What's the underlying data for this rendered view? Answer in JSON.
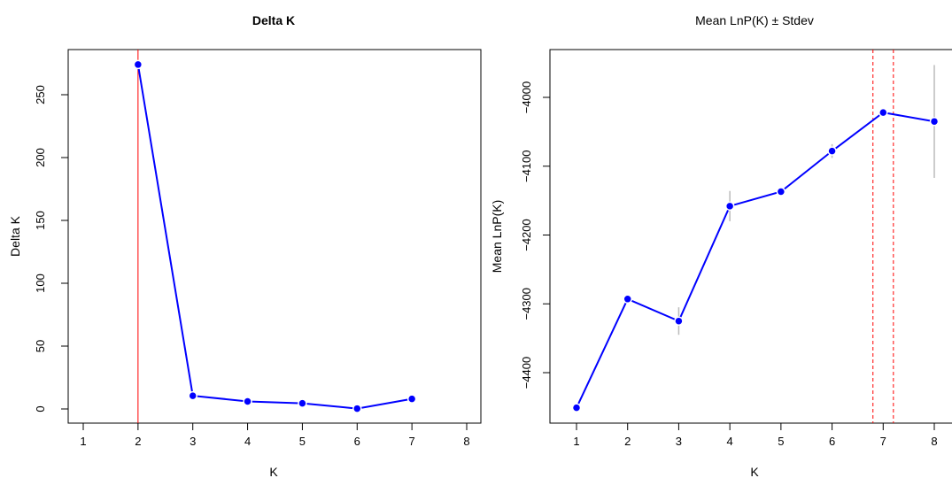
{
  "chart_data": [
    {
      "type": "line",
      "title": "Delta K",
      "xlabel": "K",
      "ylabel": "Delta K",
      "xlim": [
        1,
        8
      ],
      "ylim": [
        0,
        275
      ],
      "xticks": [
        1,
        2,
        3,
        4,
        5,
        6,
        7,
        8
      ],
      "yticks": [
        0,
        50,
        100,
        150,
        200,
        250
      ],
      "x": [
        2,
        3,
        4,
        5,
        6,
        7
      ],
      "y": [
        274,
        10.5,
        6,
        4.5,
        0.3,
        8
      ],
      "vline_x": 2,
      "grid": false,
      "colors": {
        "series": "#0000ff",
        "vline": "#ff0000"
      }
    },
    {
      "type": "line",
      "title": "Mean LnP(K) ± Stdev",
      "xlabel": "K",
      "ylabel": "Mean LnP(K)",
      "xlim": [
        1,
        8
      ],
      "ylim": [
        -4450,
        -4022
      ],
      "xticks": [
        1,
        2,
        3,
        4,
        5,
        6,
        7,
        8
      ],
      "yticks": [
        -4400,
        -4300,
        -4200,
        -4100,
        -4000
      ],
      "x": [
        1,
        2,
        3,
        4,
        5,
        6,
        7,
        8
      ],
      "y": [
        -4451,
        -4293,
        -4325,
        -4158,
        -4137,
        -4078,
        -4022,
        -4035
      ],
      "stdev": [
        0.5,
        1,
        20,
        22,
        4,
        10,
        3,
        82
      ],
      "vlines_x": [
        6.8,
        7.2
      ],
      "grid": false,
      "colors": {
        "series": "#0000ff",
        "vline": "#ff0000",
        "errorbar": "#bbbbbb"
      }
    }
  ]
}
